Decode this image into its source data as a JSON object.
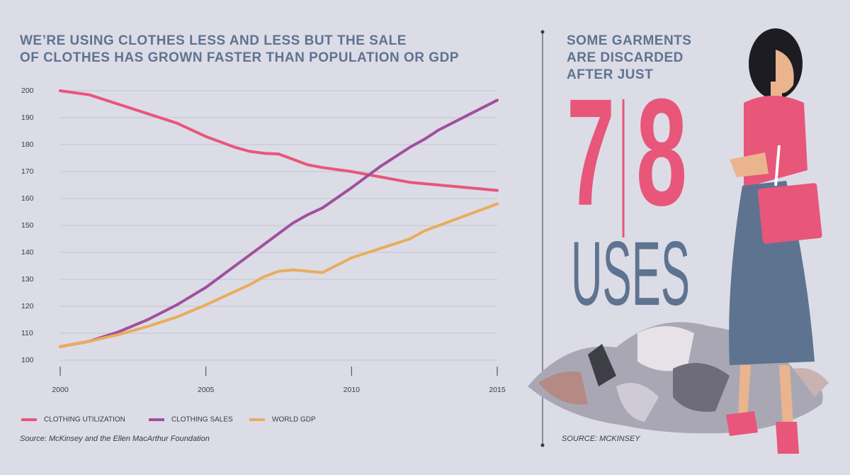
{
  "chart_data": {
    "type": "line",
    "title_lines": [
      "WE’RE USING CLOTHES LESS AND LESS BUT THE SALE",
      "OF CLOTHES HAS GROWN FASTER THAN POPULATION OR GDP"
    ],
    "x": [
      2000,
      2001,
      2002,
      2003,
      2004,
      2005,
      2006,
      2006.5,
      2007,
      2007.5,
      2008,
      2008.5,
      2009,
      2010,
      2011,
      2012,
      2012.5,
      2013,
      2014,
      2015
    ],
    "series": [
      {
        "name": "CLOTHING UTILIZATION",
        "color": "#e8567a",
        "values": [
          200,
          198.5,
          195,
          191.5,
          188,
          183,
          179,
          177.5,
          176.8,
          176.5,
          174.5,
          172.5,
          171.5,
          170,
          168,
          166,
          165.5,
          165,
          164,
          163
        ]
      },
      {
        "name": "CLOTHING SALES",
        "color": "#a0509e",
        "values": [
          105,
          107,
          110.5,
          115,
          120.5,
          127,
          135,
          139,
          143,
          147,
          151,
          154,
          156.5,
          164,
          172,
          179,
          182,
          185.5,
          191,
          196.5
        ]
      },
      {
        "name": "WORLD GDP",
        "color": "#e8ad5c",
        "values": [
          105,
          107,
          109.5,
          112.5,
          116,
          120.5,
          125.5,
          128,
          131,
          133,
          133.5,
          133,
          132.5,
          138,
          141.5,
          145,
          148,
          150,
          154,
          158
        ]
      }
    ],
    "xlim": [
      2000,
      2015
    ],
    "xticks": [
      2000,
      2005,
      2010,
      2015
    ],
    "ylim": [
      100,
      200
    ],
    "yticks": [
      100,
      110,
      120,
      130,
      140,
      150,
      160,
      170,
      180,
      190,
      200
    ],
    "grid": true,
    "legend": "bottom",
    "source": "Source: McKinsey and the Ellen MacArthur Foundation"
  },
  "sidebar": {
    "heading_lines": [
      "SOME GARMENTS",
      "ARE DISCARDED",
      "AFTER JUST"
    ],
    "number_low": "7",
    "number_high": "8",
    "unit": "USES",
    "source": "SOURCE: MCKINSEY"
  }
}
